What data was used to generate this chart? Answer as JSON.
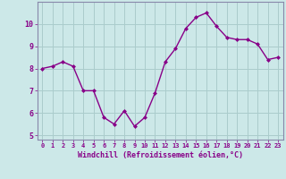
{
  "x": [
    0,
    1,
    2,
    3,
    4,
    5,
    6,
    7,
    8,
    9,
    10,
    11,
    12,
    13,
    14,
    15,
    16,
    17,
    18,
    19,
    20,
    21,
    22,
    23
  ],
  "y": [
    8.0,
    8.1,
    8.3,
    8.1,
    7.0,
    7.0,
    5.8,
    5.5,
    6.1,
    5.4,
    5.8,
    6.9,
    8.3,
    8.9,
    9.8,
    10.3,
    10.5,
    9.9,
    9.4,
    9.3,
    9.3,
    9.1,
    8.4,
    8.5
  ],
  "line_color": "#880088",
  "marker": "D",
  "marker_size": 2.0,
  "bg_color": "#cce8e8",
  "grid_color": "#aacccc",
  "xlabel": "Windchill (Refroidissement éolien,°C)",
  "ylim": [
    4.8,
    11.0
  ],
  "yticks": [
    5,
    6,
    7,
    8,
    9,
    10
  ],
  "xlim": [
    -0.5,
    23.5
  ],
  "tick_color": "#880088",
  "label_color": "#880088",
  "spine_color": "#8888aa"
}
